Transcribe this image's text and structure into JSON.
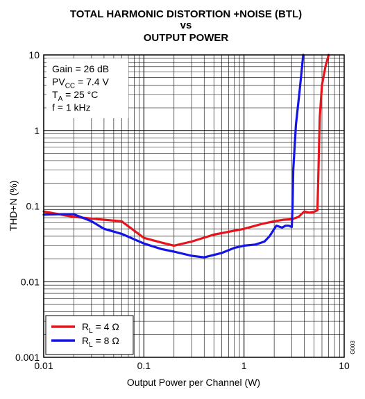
{
  "chart_data": {
    "type": "line",
    "title": "TOTAL HARMONIC DISTORTION +NOISE (BTL)",
    "title_vs": "vs",
    "subtitle": "OUTPUT POWER",
    "xlabel": "Output Power per Channel (W)",
    "ylabel": "THD+N (%)",
    "x_scale": "log",
    "y_scale": "log",
    "xlim": [
      0.01,
      10
    ],
    "ylim": [
      0.001,
      10
    ],
    "grid": true,
    "x_ticks": [
      "0.01",
      "0.1",
      "1",
      "10"
    ],
    "y_ticks": [
      "0.001",
      "0.01",
      "0.1",
      "1",
      "10"
    ],
    "conditions": [
      {
        "main": "Gain = 26 dB"
      },
      {
        "main": "PV",
        "sub": "CC",
        "rest": " = 7.4 V"
      },
      {
        "main": "T",
        "sub": "A",
        "rest": " = 25 °C"
      },
      {
        "main": "f = 1 kHz"
      }
    ],
    "legend_position": "bottom-left",
    "figure_code": "G003",
    "series": [
      {
        "name": "R_L = 4 Ω",
        "label_main": "R",
        "label_sub": "L",
        "label_rest": " = 4 Ω",
        "color": "#e8141c",
        "x": [
          0.01,
          0.02,
          0.04,
          0.06,
          0.1,
          0.15,
          0.2,
          0.3,
          0.5,
          1,
          1.5,
          2,
          2.5,
          3,
          3.5,
          4,
          4.5,
          5,
          5.4,
          5.5,
          5.6,
          5.7,
          6,
          6.5,
          7
        ],
        "y": [
          0.085,
          0.072,
          0.066,
          0.063,
          0.038,
          0.033,
          0.03,
          0.034,
          0.042,
          0.05,
          0.058,
          0.063,
          0.066,
          0.067,
          0.072,
          0.085,
          0.082,
          0.084,
          0.088,
          0.2,
          0.6,
          1.5,
          4,
          7,
          10
        ]
      },
      {
        "name": "R_L = 8 Ω",
        "label_main": "R",
        "label_sub": "L",
        "label_rest": " = 8 Ω",
        "color": "#1414e6",
        "x": [
          0.01,
          0.015,
          0.02,
          0.03,
          0.04,
          0.06,
          0.1,
          0.15,
          0.2,
          0.3,
          0.4,
          0.6,
          0.8,
          1,
          1.3,
          1.6,
          1.8,
          2.1,
          2.4,
          2.6,
          2.8,
          3,
          3.05,
          3.1,
          3.3,
          3.6,
          3.9
        ],
        "y": [
          0.077,
          0.078,
          0.078,
          0.063,
          0.05,
          0.043,
          0.032,
          0.027,
          0.025,
          0.022,
          0.021,
          0.024,
          0.028,
          0.03,
          0.031,
          0.034,
          0.04,
          0.055,
          0.052,
          0.055,
          0.055,
          0.053,
          0.1,
          0.3,
          1.2,
          3.5,
          10
        ]
      }
    ]
  }
}
